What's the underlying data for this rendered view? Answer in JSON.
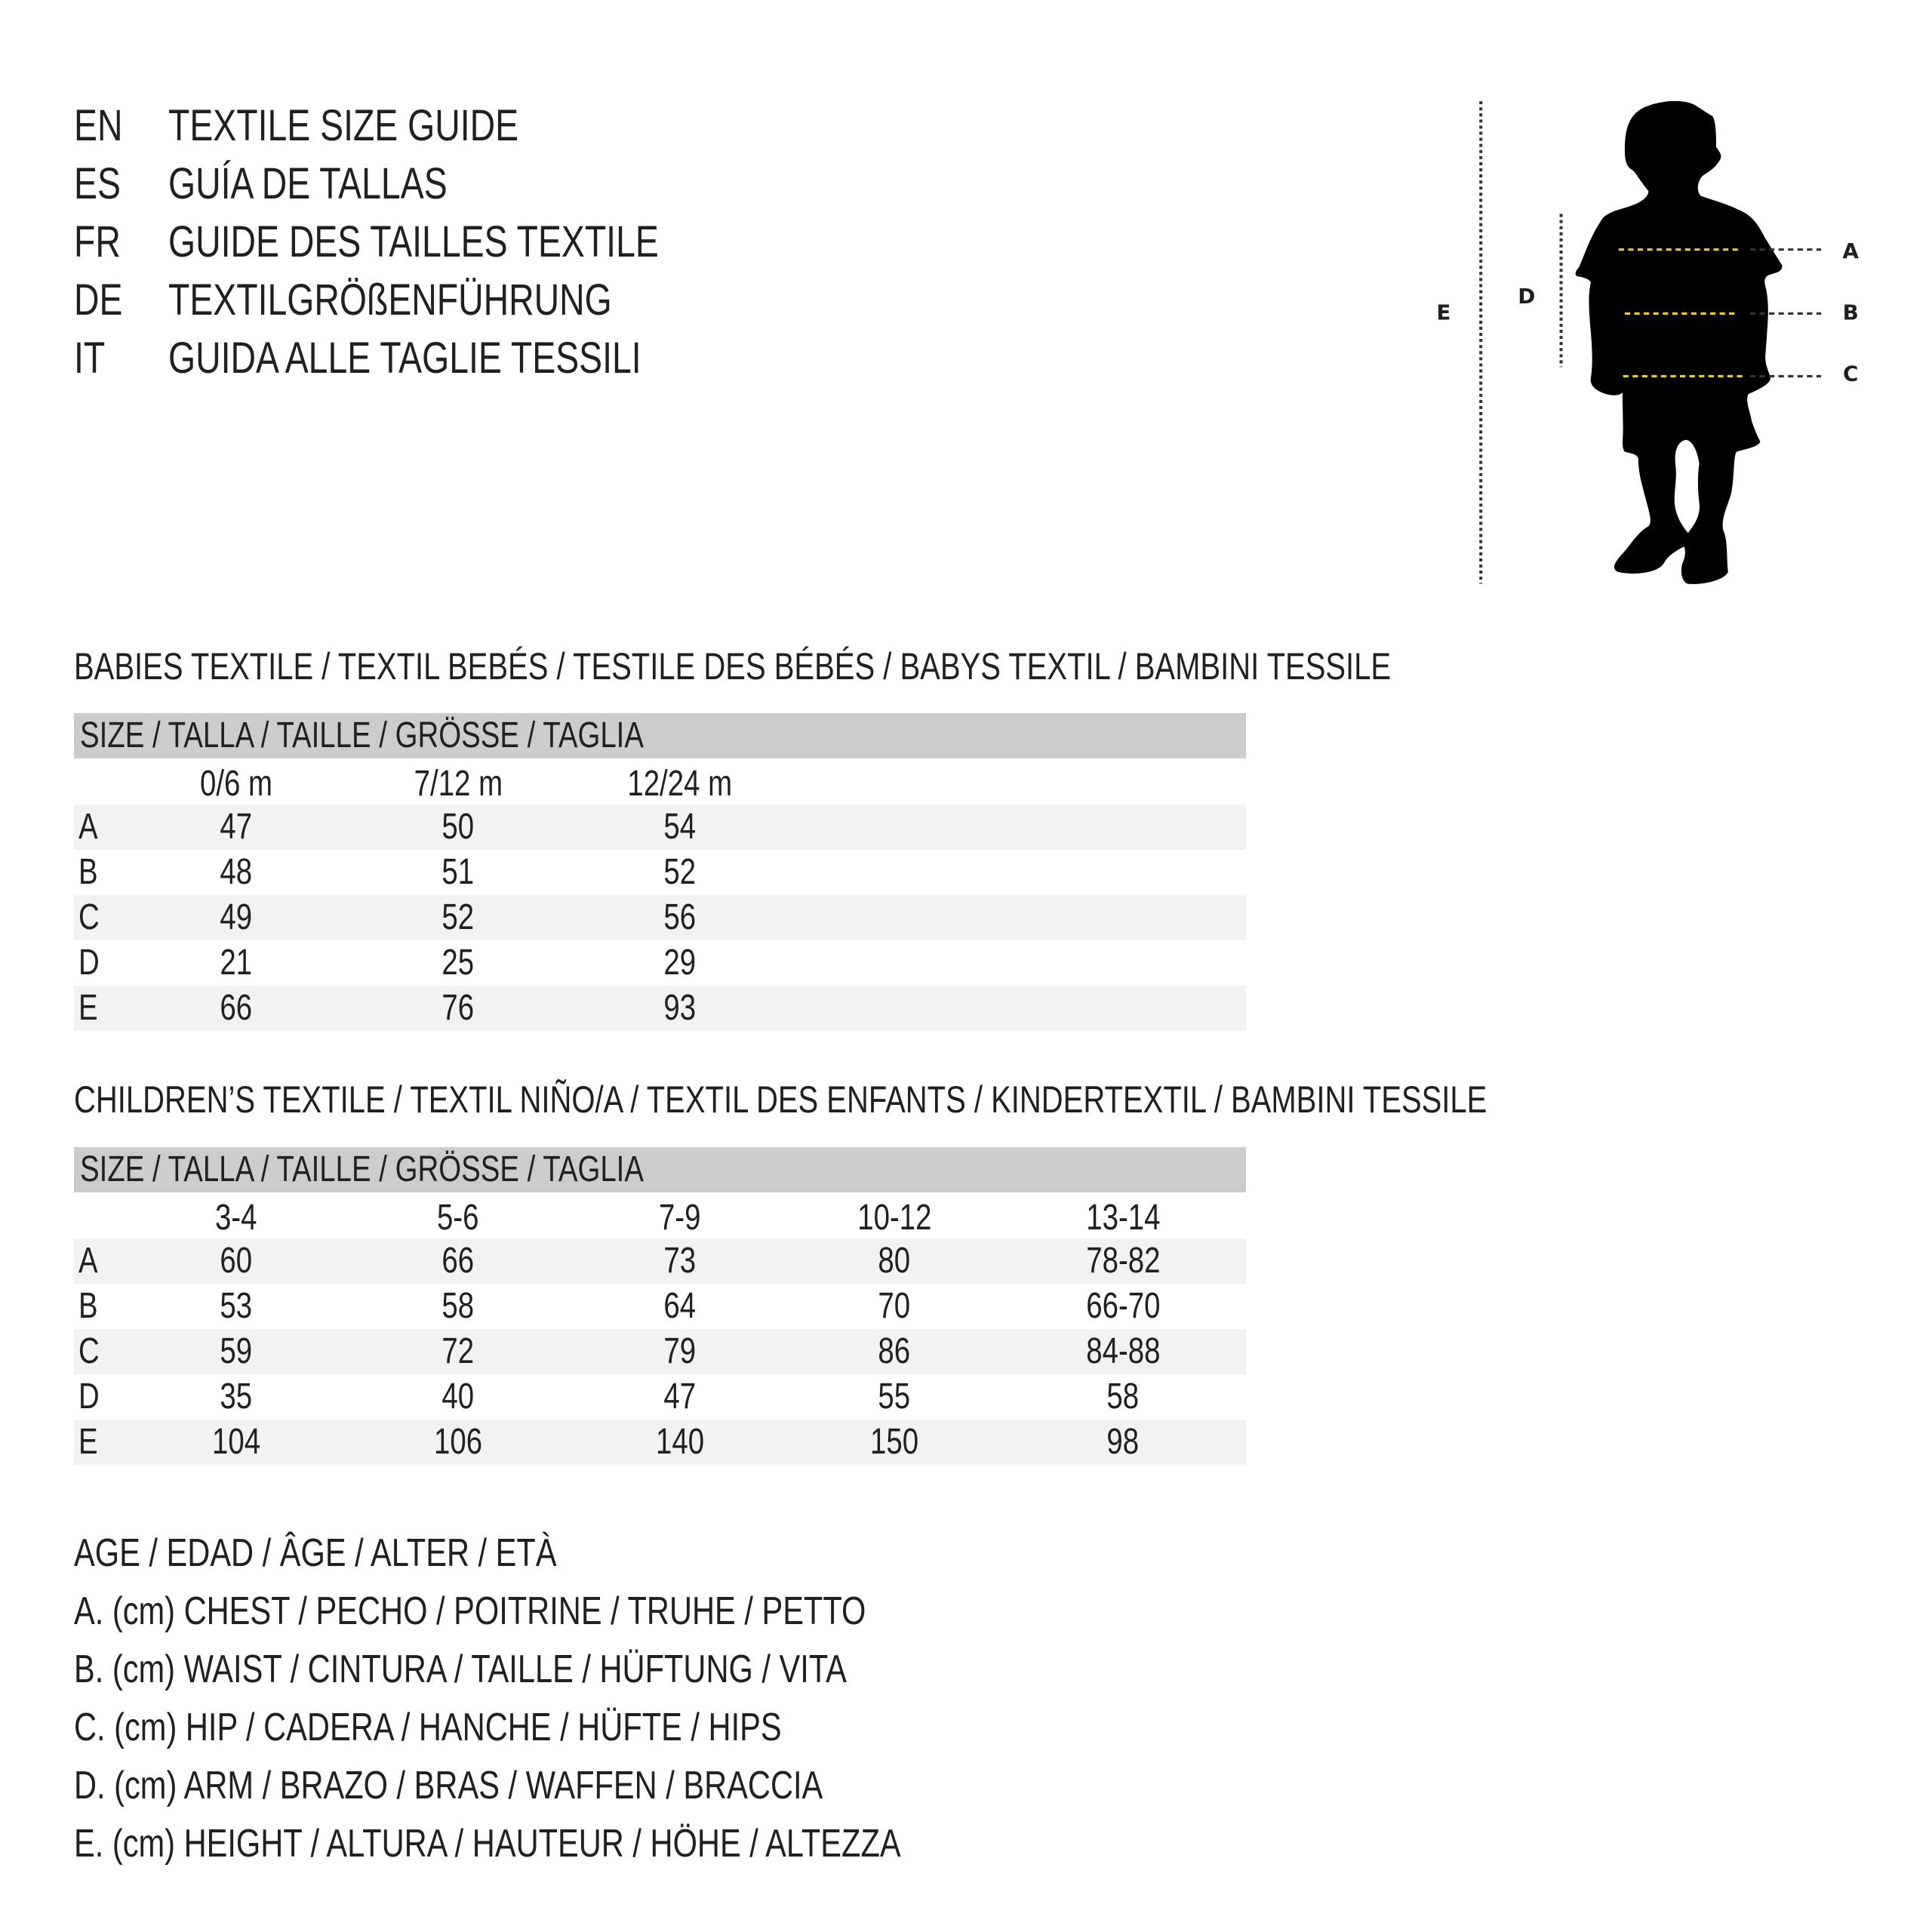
{
  "titles": [
    {
      "code": "EN",
      "text": "TEXTILE SIZE GUIDE"
    },
    {
      "code": "ES",
      "text": "GUÍA DE TALLAS"
    },
    {
      "code": "FR",
      "text": "GUIDE DES TAILLES TEXTILE"
    },
    {
      "code": "DE",
      "text": "TEXTILGRÖßENFÜHRUNG"
    },
    {
      "code": "IT",
      "text": "GUIDA ALLE TAGLIE TESSILI"
    }
  ],
  "babies": {
    "title": "BABIES TEXTILE / TEXTIL BEBÉS / TESTILE DES BÉBÉS / BABYS TEXTIL / BAMBINI TESSILE",
    "size_header": "SIZE / TALLA / TAILLE / GRÖSSE / TAGLIA",
    "columns": [
      "0/6 m",
      "7/12 m",
      "12/24 m"
    ],
    "rows": [
      {
        "label": "A",
        "values": [
          "47",
          "50",
          "54"
        ]
      },
      {
        "label": "B",
        "values": [
          "48",
          "51",
          "52"
        ]
      },
      {
        "label": "C",
        "values": [
          "49",
          "52",
          "56"
        ]
      },
      {
        "label": "D",
        "values": [
          "21",
          "25",
          "29"
        ]
      },
      {
        "label": "E",
        "values": [
          "66",
          "76",
          "93"
        ]
      }
    ]
  },
  "children": {
    "title": "CHILDREN’S TEXTILE / TEXTIL NIÑO/A / TEXTIL DES ENFANTS / KINDERTEXTIL / BAMBINI TESSILE",
    "size_header": "SIZE / TALLA / TAILLE / GRÖSSE / TAGLIA",
    "columns": [
      "3-4",
      "5-6",
      "7-9",
      "10-12",
      "13-14"
    ],
    "rows": [
      {
        "label": "A",
        "values": [
          "60",
          "66",
          "73",
          "80",
          "78-82"
        ]
      },
      {
        "label": "B",
        "values": [
          "53",
          "58",
          "64",
          "70",
          "66-70"
        ]
      },
      {
        "label": "C",
        "values": [
          "59",
          "72",
          "79",
          "86",
          "84-88"
        ]
      },
      {
        "label": "D",
        "values": [
          "35",
          "40",
          "47",
          "55",
          "58"
        ]
      },
      {
        "label": "E",
        "values": [
          "104",
          "106",
          "140",
          "150",
          "98"
        ]
      }
    ]
  },
  "legend": [
    "AGE / EDAD / ÂGE / ALTER / ETÀ",
    "A. (cm) CHEST / PECHO / POITRINE / TRUHE / PETTO",
    "B. (cm) WAIST / CINTURA / TAILLE / HÜFTUNG / VITA",
    "C. (cm) HIP / CADERA / HANCHE / HÜFTE / HIPS",
    "D. (cm) ARM / BRAZO / BRAS / WAFFEN / BRACCIA",
    "E. (cm) HEIGHT / ALTURA / HAUTEUR / HÖHE / ALTEZZA"
  ],
  "figure": {
    "labels": {
      "A": "A",
      "B": "B",
      "C": "C",
      "D": "D",
      "E": "E"
    },
    "icon": "child-silhouette-icon",
    "colors": {
      "silhouette": "#000000",
      "measure_line": "#f5d000",
      "guide_line": "#333333"
    }
  }
}
